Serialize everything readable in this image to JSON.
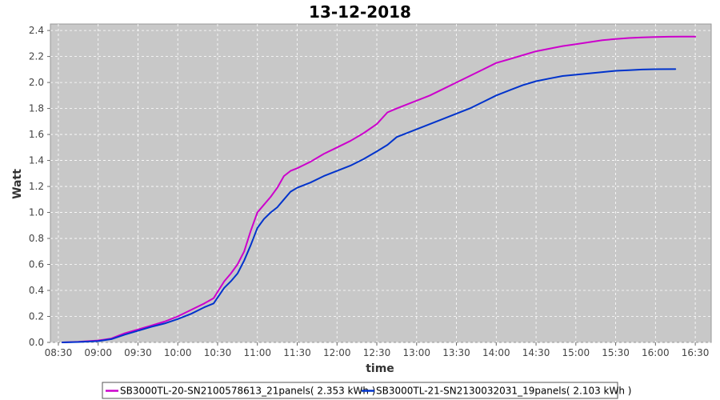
{
  "chart_data": {
    "type": "line",
    "title": "13-12-2018",
    "xlabel": "time",
    "ylabel": "Watt",
    "x_ticks": [
      "08:30",
      "09:00",
      "09:30",
      "10:00",
      "10:30",
      "11:00",
      "11:30",
      "12:00",
      "12:30",
      "13:00",
      "13:30",
      "14:00",
      "14:30",
      "15:00",
      "15:30",
      "16:00",
      "16:30"
    ],
    "xlim": [
      "08:24",
      "16:42"
    ],
    "ylim": [
      0,
      2.45
    ],
    "y_ticks": [
      0.0,
      0.2,
      0.4,
      0.6,
      0.8,
      1.0,
      1.2,
      1.4,
      1.6,
      1.8,
      2.0,
      2.2,
      2.4
    ],
    "y_tick_labels": [
      "0.0",
      "0.2",
      "0.4",
      "0.6",
      "0.8",
      "1.0",
      "1.2",
      "1.4",
      "1.6",
      "1.8",
      "2.0",
      "2.2",
      "2.4"
    ],
    "grid": true,
    "legend_position": "bottom",
    "colors": {
      "plot_background": "#c8c8c8",
      "gridlines": "#ffffff"
    },
    "series": [
      {
        "name": "SB3000TL-20-SN2100578613_21panels( 2.353 kWh )",
        "color": "#cc00cc",
        "x": [
          "08:33",
          "08:45",
          "09:00",
          "09:10",
          "09:20",
          "09:30",
          "09:40",
          "09:50",
          "10:00",
          "10:10",
          "10:20",
          "10:27",
          "10:35",
          "10:40",
          "10:45",
          "10:50",
          "10:55",
          "11:00",
          "11:05",
          "11:10",
          "11:15",
          "11:20",
          "11:25",
          "11:30",
          "11:40",
          "11:50",
          "12:00",
          "12:10",
          "12:20",
          "12:30",
          "12:38",
          "12:45",
          "12:50",
          "13:00",
          "13:10",
          "13:20",
          "13:30",
          "13:40",
          "13:50",
          "14:00",
          "14:10",
          "14:20",
          "14:30",
          "14:40",
          "14:50",
          "15:00",
          "15:10",
          "15:20",
          "15:30",
          "15:40",
          "15:50",
          "16:00",
          "16:10",
          "16:20",
          "16:30"
        ],
        "y": [
          0.0,
          0.005,
          0.015,
          0.03,
          0.07,
          0.1,
          0.13,
          0.16,
          0.2,
          0.25,
          0.3,
          0.34,
          0.47,
          0.53,
          0.6,
          0.7,
          0.86,
          1.0,
          1.06,
          1.12,
          1.19,
          1.28,
          1.32,
          1.34,
          1.39,
          1.45,
          1.5,
          1.55,
          1.61,
          1.68,
          1.77,
          1.8,
          1.82,
          1.86,
          1.9,
          1.95,
          2.0,
          2.05,
          2.1,
          2.15,
          2.18,
          2.21,
          2.24,
          2.26,
          2.28,
          2.295,
          2.31,
          2.325,
          2.335,
          2.342,
          2.347,
          2.35,
          2.352,
          2.353,
          2.353
        ]
      },
      {
        "name": "SB3000TL-21-SN2130032031_19panels( 2.103 kWh )",
        "color": "#0033cc",
        "x": [
          "08:33",
          "08:45",
          "09:00",
          "09:10",
          "09:20",
          "09:30",
          "09:40",
          "09:50",
          "10:00",
          "10:10",
          "10:20",
          "10:27",
          "10:35",
          "10:40",
          "10:45",
          "10:50",
          "10:55",
          "11:00",
          "11:05",
          "11:10",
          "11:15",
          "11:20",
          "11:25",
          "11:30",
          "11:40",
          "11:50",
          "12:00",
          "12:10",
          "12:20",
          "12:30",
          "12:38",
          "12:45",
          "12:50",
          "13:00",
          "13:10",
          "13:20",
          "13:30",
          "13:40",
          "13:50",
          "14:00",
          "14:10",
          "14:20",
          "14:30",
          "14:40",
          "14:50",
          "15:00",
          "15:10",
          "15:20",
          "15:30",
          "15:40",
          "15:50",
          "16:00",
          "16:15"
        ],
        "y": [
          0.0,
          0.003,
          0.01,
          0.025,
          0.06,
          0.09,
          0.12,
          0.145,
          0.18,
          0.22,
          0.27,
          0.3,
          0.42,
          0.47,
          0.53,
          0.63,
          0.75,
          0.88,
          0.95,
          1.0,
          1.04,
          1.1,
          1.16,
          1.19,
          1.23,
          1.28,
          1.32,
          1.36,
          1.41,
          1.47,
          1.52,
          1.58,
          1.6,
          1.64,
          1.68,
          1.72,
          1.76,
          1.8,
          1.85,
          1.9,
          1.94,
          1.98,
          2.01,
          2.03,
          2.05,
          2.06,
          2.07,
          2.08,
          2.09,
          2.095,
          2.1,
          2.102,
          2.103
        ]
      }
    ]
  }
}
